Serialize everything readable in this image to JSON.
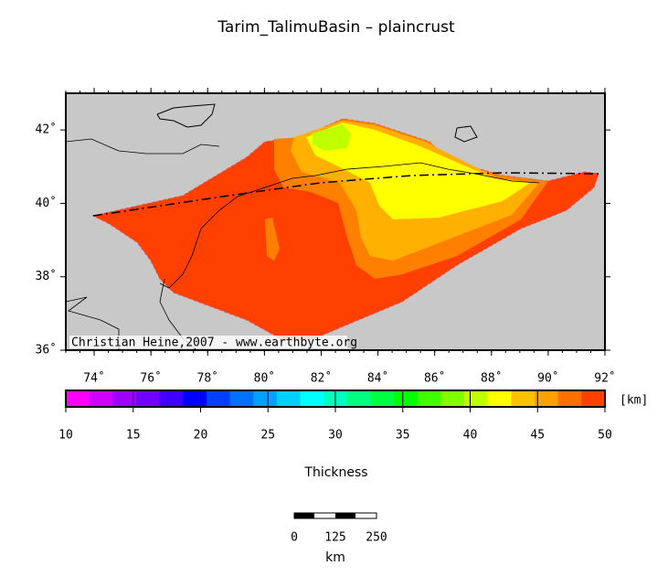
{
  "title": "Tarim_TalimuBasin – plaincrust",
  "credit": "Christian Heine,2007 - www.earthbyte.org",
  "map": {
    "lon_ticks": [
      {
        "value": 74,
        "label": "74˚"
      },
      {
        "value": 76,
        "label": "76˚"
      },
      {
        "value": 78,
        "label": "78˚"
      },
      {
        "value": 80,
        "label": "80˚"
      },
      {
        "value": 82,
        "label": "82˚"
      },
      {
        "value": 84,
        "label": "84˚"
      },
      {
        "value": 86,
        "label": "86˚"
      },
      {
        "value": 88,
        "label": "88˚"
      },
      {
        "value": 90,
        "label": "90˚"
      },
      {
        "value": 92,
        "label": "92˚"
      }
    ],
    "lat_ticks": [
      {
        "value": 36,
        "label": "36˚"
      },
      {
        "value": 38,
        "label": "38˚"
      },
      {
        "value": 40,
        "label": "40˚"
      },
      {
        "value": 42,
        "label": "42˚"
      }
    ]
  },
  "colorbar": {
    "ticks": [
      10,
      15,
      20,
      25,
      30,
      35,
      40,
      45,
      50
    ],
    "unit": "[km]",
    "label": "Thickness",
    "colors": [
      "#ff00ff",
      "#d000ff",
      "#a000ff",
      "#7000ff",
      "#4000ff",
      "#0000ff",
      "#0040ff",
      "#0070ff",
      "#00a0ff",
      "#00d0ff",
      "#00ffff",
      "#00ffc0",
      "#00ff80",
      "#00ff40",
      "#00ff00",
      "#40ff00",
      "#80ff00",
      "#c0ff00",
      "#ffff00",
      "#ffc000",
      "#ffa000",
      "#ff7000",
      "#ff4000"
    ]
  },
  "scalebar": {
    "labels": [
      "0",
      "125",
      "250"
    ],
    "unit": "km"
  }
}
